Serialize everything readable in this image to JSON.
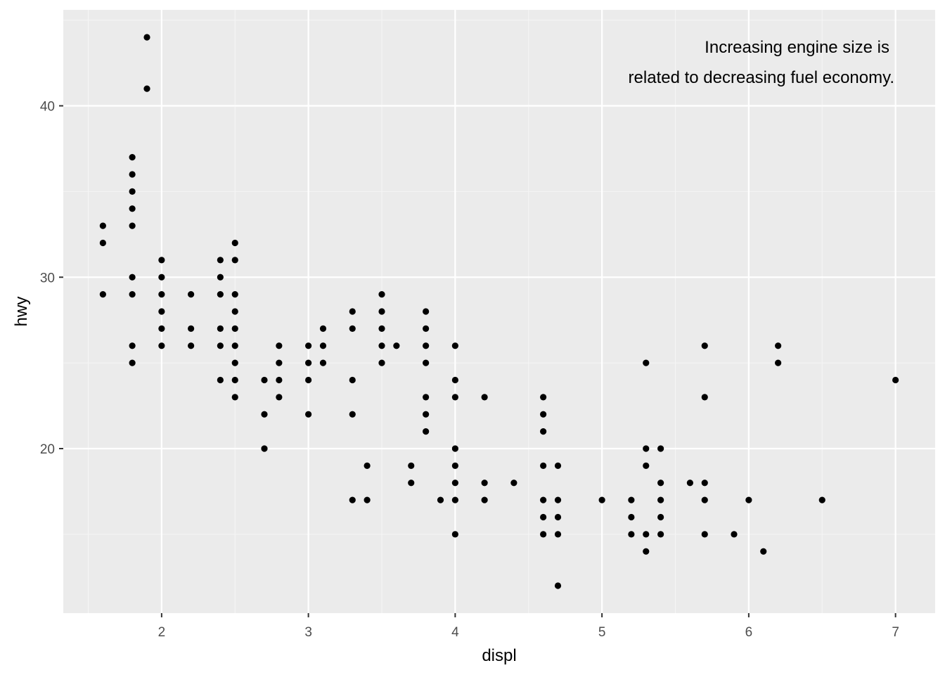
{
  "colors": {
    "panel_background": "#ebebeb",
    "grid_major": "#ffffff",
    "grid_minor": "#f5f5f5",
    "tick_mark": "#333333",
    "point": "#000000"
  },
  "chart_data": {
    "type": "scatter",
    "title": "",
    "xlabel": "displ",
    "ylabel": "hwy",
    "xlim": [
      1.33,
      7.27
    ],
    "ylim": [
      10.4,
      45.6
    ],
    "x_ticks": [
      2,
      3,
      4,
      5,
      6,
      7
    ],
    "y_ticks": [
      20,
      30,
      40
    ],
    "grid": true,
    "legend": "none",
    "annotation": {
      "lines": [
        "Increasing engine size is",
        "related to decreasing fuel economy."
      ],
      "placement": "top-right"
    },
    "points": [
      [
        1.6,
        33
      ],
      [
        1.6,
        32
      ],
      [
        1.6,
        29
      ],
      [
        1.8,
        37
      ],
      [
        1.8,
        36
      ],
      [
        1.8,
        35
      ],
      [
        1.8,
        34
      ],
      [
        1.8,
        33
      ],
      [
        1.8,
        30
      ],
      [
        1.8,
        29
      ],
      [
        1.8,
        26
      ],
      [
        1.8,
        25
      ],
      [
        1.9,
        44
      ],
      [
        1.9,
        41
      ],
      [
        2.0,
        31
      ],
      [
        2.0,
        30
      ],
      [
        2.0,
        29
      ],
      [
        2.0,
        28
      ],
      [
        2.0,
        27
      ],
      [
        2.0,
        26
      ],
      [
        2.2,
        29
      ],
      [
        2.2,
        27
      ],
      [
        2.2,
        26
      ],
      [
        2.4,
        31
      ],
      [
        2.4,
        30
      ],
      [
        2.4,
        29
      ],
      [
        2.4,
        27
      ],
      [
        2.4,
        26
      ],
      [
        2.4,
        24
      ],
      [
        2.5,
        32
      ],
      [
        2.5,
        31
      ],
      [
        2.5,
        29
      ],
      [
        2.5,
        28
      ],
      [
        2.5,
        27
      ],
      [
        2.5,
        26
      ],
      [
        2.5,
        25
      ],
      [
        2.5,
        24
      ],
      [
        2.5,
        23
      ],
      [
        2.7,
        24
      ],
      [
        2.7,
        22
      ],
      [
        2.7,
        20
      ],
      [
        2.8,
        26
      ],
      [
        2.8,
        25
      ],
      [
        2.8,
        24
      ],
      [
        2.8,
        23
      ],
      [
        3.0,
        26
      ],
      [
        3.0,
        25
      ],
      [
        3.0,
        24
      ],
      [
        3.0,
        22
      ],
      [
        3.1,
        27
      ],
      [
        3.1,
        26
      ],
      [
        3.1,
        25
      ],
      [
        3.3,
        28
      ],
      [
        3.3,
        27
      ],
      [
        3.3,
        24
      ],
      [
        3.3,
        22
      ],
      [
        3.3,
        17
      ],
      [
        3.4,
        19
      ],
      [
        3.4,
        17
      ],
      [
        3.5,
        29
      ],
      [
        3.5,
        28
      ],
      [
        3.5,
        27
      ],
      [
        3.5,
        26
      ],
      [
        3.5,
        25
      ],
      [
        3.6,
        26
      ],
      [
        3.7,
        19
      ],
      [
        3.7,
        18
      ],
      [
        3.8,
        28
      ],
      [
        3.8,
        27
      ],
      [
        3.8,
        26
      ],
      [
        3.8,
        25
      ],
      [
        3.8,
        23
      ],
      [
        3.8,
        22
      ],
      [
        3.8,
        21
      ],
      [
        3.9,
        17
      ],
      [
        4.0,
        26
      ],
      [
        4.0,
        24
      ],
      [
        4.0,
        23
      ],
      [
        4.0,
        20
      ],
      [
        4.0,
        19
      ],
      [
        4.0,
        18
      ],
      [
        4.0,
        17
      ],
      [
        4.0,
        15
      ],
      [
        4.2,
        23
      ],
      [
        4.2,
        18
      ],
      [
        4.2,
        17
      ],
      [
        4.4,
        18
      ],
      [
        4.6,
        23
      ],
      [
        4.6,
        22
      ],
      [
        4.6,
        21
      ],
      [
        4.6,
        19
      ],
      [
        4.6,
        17
      ],
      [
        4.6,
        16
      ],
      [
        4.6,
        15
      ],
      [
        4.7,
        19
      ],
      [
        4.7,
        17
      ],
      [
        4.7,
        16
      ],
      [
        4.7,
        15
      ],
      [
        4.7,
        12
      ],
      [
        5.0,
        17
      ],
      [
        5.2,
        17
      ],
      [
        5.2,
        16
      ],
      [
        5.2,
        15
      ],
      [
        5.3,
        25
      ],
      [
        5.3,
        20
      ],
      [
        5.3,
        19
      ],
      [
        5.3,
        15
      ],
      [
        5.3,
        14
      ],
      [
        5.4,
        20
      ],
      [
        5.4,
        18
      ],
      [
        5.4,
        17
      ],
      [
        5.4,
        16
      ],
      [
        5.4,
        15
      ],
      [
        5.6,
        18
      ],
      [
        5.7,
        26
      ],
      [
        5.7,
        23
      ],
      [
        5.7,
        18
      ],
      [
        5.7,
        17
      ],
      [
        5.7,
        15
      ],
      [
        5.9,
        15
      ],
      [
        6.0,
        17
      ],
      [
        6.1,
        14
      ],
      [
        6.2,
        26
      ],
      [
        6.2,
        25
      ],
      [
        6.5,
        17
      ],
      [
        7.0,
        24
      ]
    ]
  }
}
